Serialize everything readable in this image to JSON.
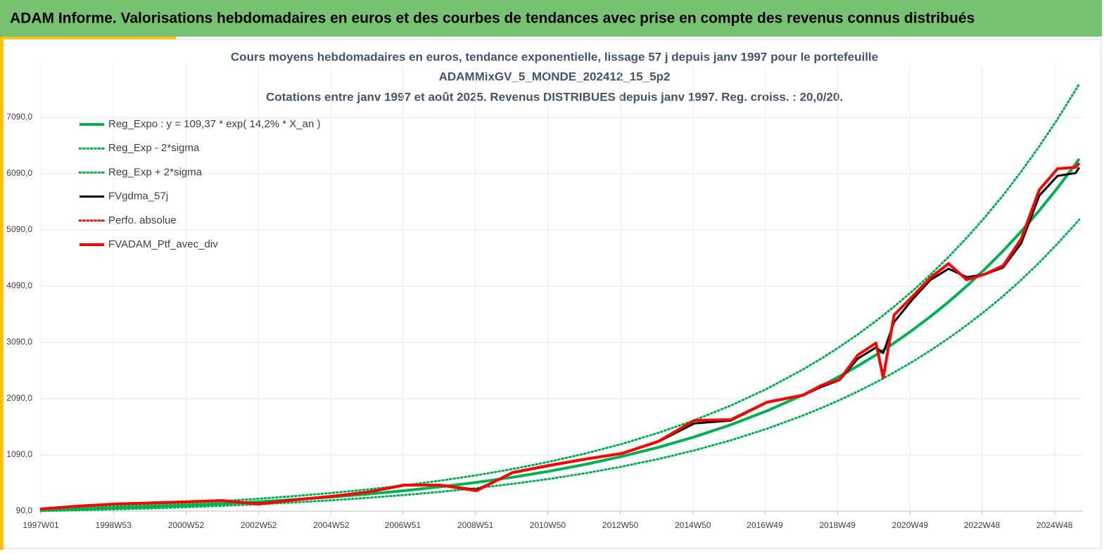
{
  "header": {
    "title": "ADAM Informe. Valorisations hebdomadaires en euros et des courbes de tendances avec prise en compte des revenus connus distribués"
  },
  "chart_data": {
    "type": "line",
    "title": "Cours moyens hebdomadaires  en euros, tendance exponentielle, lissage 57 j depuis janv 1997 pour le portefeuille",
    "subtitle": "ADAMMixGV_5_MONDE_202412_15_5p2",
    "subtitle2": "Cotations  entre janv 1997 et août 2025. Revenus DISTRIBUES depuis janv 1997. Reg. croiss. : 20,0/20.",
    "x": [
      1997,
      1998,
      1999,
      2000,
      2001,
      2002,
      2003,
      2004,
      2005,
      2006,
      2007,
      2008,
      2009,
      2010,
      2011,
      2012,
      2013,
      2014,
      2015,
      2016,
      2017,
      2018,
      2018.5,
      2019,
      2019.5,
      2020,
      2020.2,
      2020.5,
      2021,
      2021.5,
      2022,
      2022.5,
      2023,
      2023.5,
      2024,
      2024.5,
      2025,
      2025.5,
      2025.6
    ],
    "xlim": [
      1997,
      2025.7
    ],
    "xticks": [
      {
        "value": 1997,
        "label": "1997W01"
      },
      {
        "value": 1999,
        "label": "1998W53"
      },
      {
        "value": 2001,
        "label": "2000W52"
      },
      {
        "value": 2003,
        "label": "2002W52"
      },
      {
        "value": 2005,
        "label": "2004W52"
      },
      {
        "value": 2006.97,
        "label": "2006W51"
      },
      {
        "value": 2008.97,
        "label": "2008W51"
      },
      {
        "value": 2010.96,
        "label": "2010W50"
      },
      {
        "value": 2012.96,
        "label": "2012W50"
      },
      {
        "value": 2014.96,
        "label": "2014W50"
      },
      {
        "value": 2016.94,
        "label": "2016W49"
      },
      {
        "value": 2018.94,
        "label": "2018W49"
      },
      {
        "value": 2020.94,
        "label": "2020W49"
      },
      {
        "value": 2022.92,
        "label": "2022W48"
      },
      {
        "value": 2024.92,
        "label": "2024W48"
      }
    ],
    "ylim": [
      90,
      8015
    ],
    "yticks": [
      {
        "value": 90,
        "label": "90,0"
      },
      {
        "value": 1090,
        "label": "1090,0"
      },
      {
        "value": 2090,
        "label": "2090,0"
      },
      {
        "value": 3090,
        "label": "3090,0"
      },
      {
        "value": 4090,
        "label": "4090,0"
      },
      {
        "value": 5090,
        "label": "5090,0"
      },
      {
        "value": 6090,
        "label": "6090,0"
      },
      {
        "value": 7090,
        "label": "7090,0"
      }
    ],
    "grid": true,
    "legend": "top-left",
    "series": [
      {
        "name": "Reg_Expo : y = 109,37 * exp( 14,2% *  X_an )",
        "color": "#00b050",
        "style": "solid",
        "width": 4,
        "values": [
          109,
          126,
          145,
          168,
          193,
          223,
          256,
          296,
          341,
          393,
          453,
          522,
          601,
          693,
          799,
          921,
          1061,
          1223,
          1410,
          1625,
          1873,
          2159,
          2318,
          2488,
          2671,
          2868,
          2951,
          3079,
          3306,
          3549,
          3810,
          4091,
          4392,
          4715,
          5062,
          5435,
          5835,
          6264,
          6353
        ]
      },
      {
        "name": "Reg_Exp - 2*sigma",
        "color": "#00b050",
        "style": "dotted",
        "width": 3,
        "values": [
          91,
          105,
          121,
          139,
          160,
          185,
          213,
          245,
          283,
          326,
          376,
          433,
          499,
          575,
          663,
          764,
          881,
          1015,
          1170,
          1349,
          1555,
          1792,
          1924,
          2065,
          2217,
          2380,
          2449,
          2556,
          2744,
          2946,
          3162,
          3396,
          3645,
          3913,
          4201,
          4511,
          4845,
          5199,
          5273
        ]
      },
      {
        "name": "Reg_Exp + 2*sigma",
        "color": "#00b050",
        "style": "dotted",
        "width": 3,
        "values": [
          132,
          153,
          176,
          203,
          234,
          269,
          310,
          358,
          412,
          475,
          548,
          631,
          728,
          839,
          967,
          1114,
          1284,
          1480,
          1706,
          1966,
          2266,
          2612,
          2805,
          3010,
          3232,
          3470,
          3571,
          3726,
          4000,
          4294,
          4610,
          4950,
          5314,
          5705,
          6126,
          6577,
          7060,
          7580,
          7687
        ]
      },
      {
        "name": "FVgdma_57j",
        "color": "#000000",
        "style": "solid",
        "width": 3,
        "values": [
          127,
          178,
          215,
          235,
          255,
          275,
          225,
          288,
          350,
          425,
          545,
          555,
          470,
          770,
          895,
          1010,
          1110,
          1320,
          1650,
          1700,
          2020,
          2150,
          2300,
          2420,
          2800,
          3000,
          2900,
          3450,
          3850,
          4200,
          4400,
          4250,
          4300,
          4420,
          4850,
          5700,
          6050,
          6100,
          6200
        ]
      },
      {
        "name": "Perfo. absolue",
        "color": "#ff0000",
        "style": "dotted",
        "width": 3,
        "values": [
          127,
          178,
          215,
          235,
          255,
          278,
          215,
          290,
          353,
          428,
          553,
          553,
          453,
          778,
          903,
          1015,
          1115,
          1328,
          1703,
          1715,
          2028,
          2153,
          2328,
          2428,
          2865,
          3078,
          2465,
          3578,
          3903,
          4240,
          4490,
          4203,
          4303,
          4453,
          4928,
          5803,
          6178,
          6203,
          6278
        ]
      },
      {
        "name": "FVADAM_Ptf_avec_div",
        "color": "#ff0000",
        "style": "solid",
        "width": 4,
        "values": [
          127,
          178,
          215,
          235,
          255,
          278,
          215,
          290,
          353,
          428,
          553,
          553,
          453,
          778,
          903,
          1015,
          1115,
          1328,
          1703,
          1715,
          2028,
          2153,
          2328,
          2428,
          2865,
          3078,
          2465,
          3578,
          3903,
          4240,
          4490,
          4203,
          4303,
          4453,
          4928,
          5803,
          6178,
          6203,
          6278
        ]
      }
    ]
  }
}
